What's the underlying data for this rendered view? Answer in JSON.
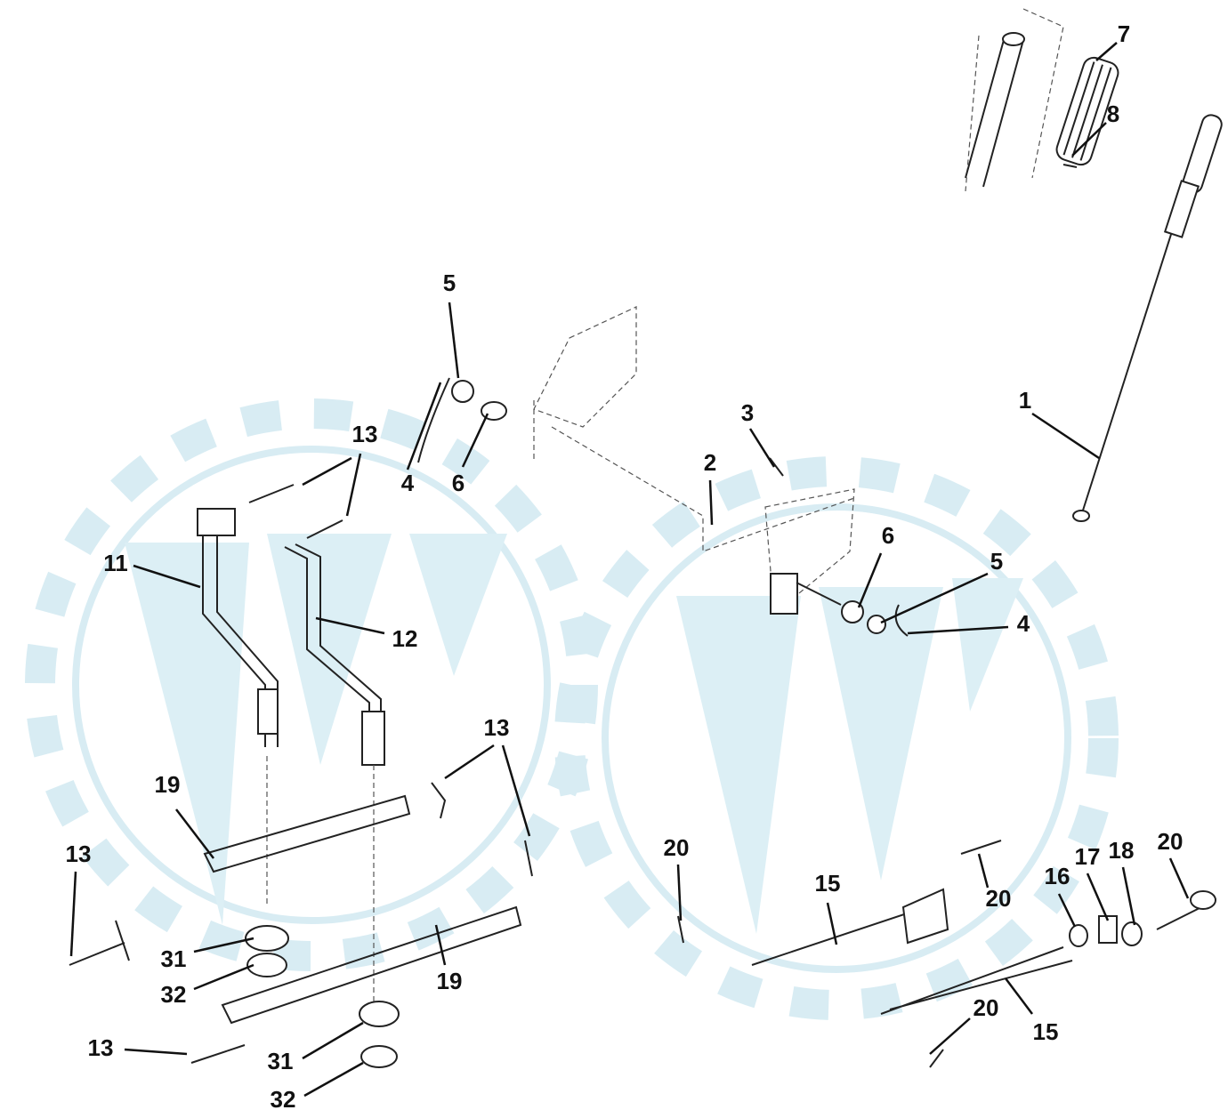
{
  "callouts": [
    "7",
    "8",
    "5",
    "1",
    "3",
    "13",
    "2",
    "4",
    "6",
    "11",
    "6",
    "5",
    "12",
    "4",
    "13",
    "19",
    "13",
    "20",
    "18",
    "20",
    "15",
    "17",
    "16",
    "20",
    "31",
    "32",
    "19",
    "20",
    "15",
    "13",
    "31",
    "32"
  ]
}
